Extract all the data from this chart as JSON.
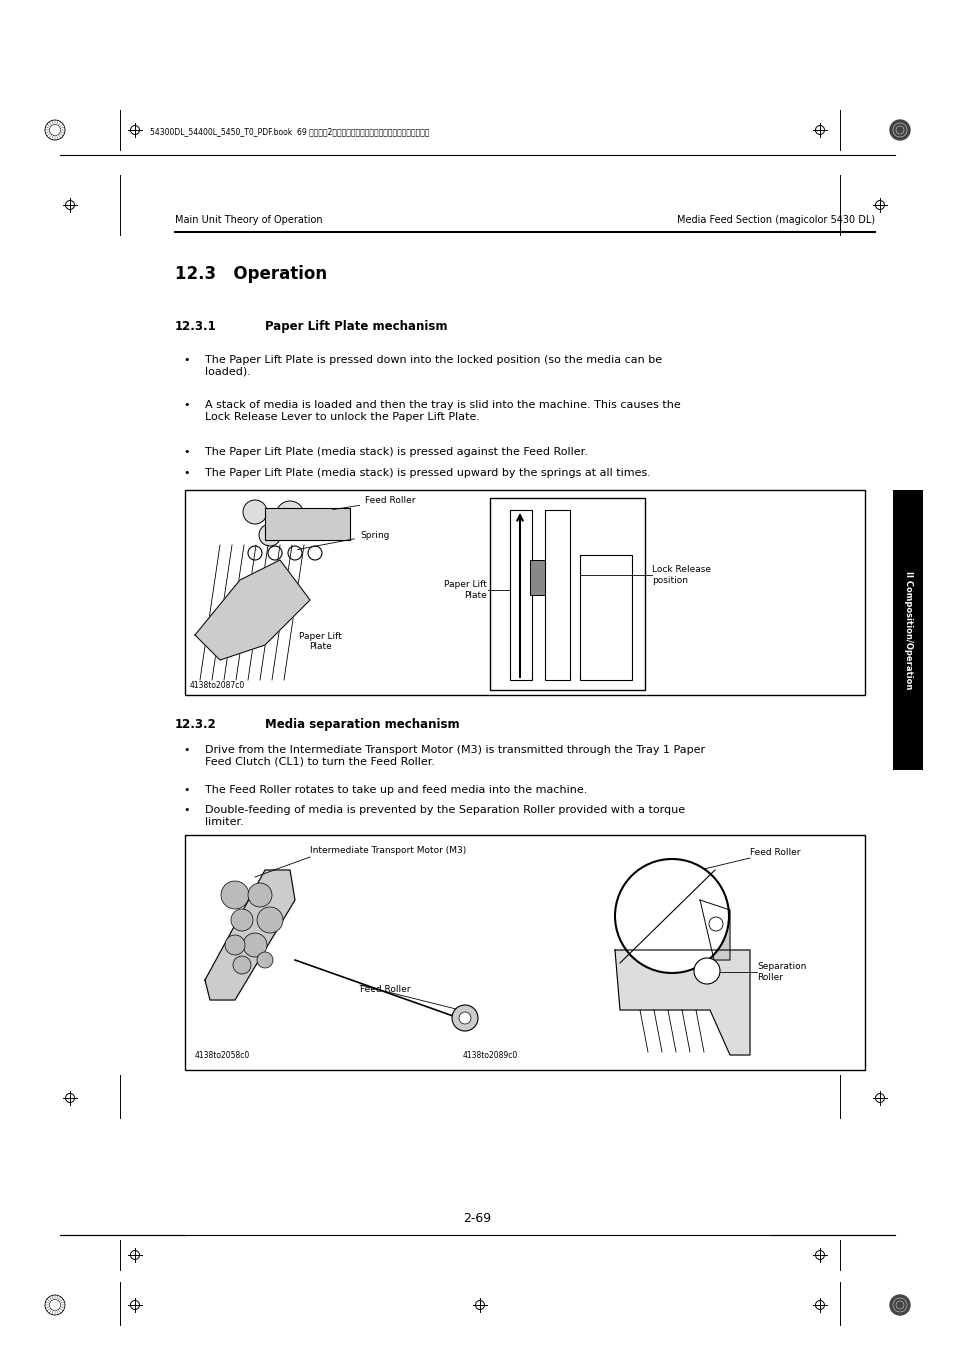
{
  "bg_color": "#ffffff",
  "page_width": 9.54,
  "page_height": 13.51,
  "header_left": "Main Unit Theory of Operation",
  "header_right": "Media Feed Section (magicolor 5430 DL)",
  "section_title": "12.3   Operation",
  "subsection1_num": "12.3.1",
  "subsection1_title": "Paper Lift Plate mechanism",
  "subsection2_num": "12.3.2",
  "subsection2_title": "Media separation mechanism",
  "bullet1_1": "The Paper Lift Plate is pressed down into the locked position (so the media can be\nloaded).",
  "bullet1_2": "A stack of media is loaded and then the tray is slid into the machine. This causes the\nLock Release Lever to unlock the Paper Lift Plate.",
  "bullet1_3": "The Paper Lift Plate (media stack) is pressed against the Feed Roller.",
  "bullet1_4": "The Paper Lift Plate (media stack) is pressed upward by the springs at all times.",
  "bullet2_1": "Drive from the Intermediate Transport Motor (M3) is transmitted through the Tray 1 Paper\nFeed Clutch (CL1) to turn the Feed Roller.",
  "bullet2_2": "The Feed Roller rotates to take up and feed media into the machine.",
  "bullet2_3": "Double-feeding of media is prevented by the Separation Roller provided with a torque\nlimiter.",
  "footer_text": "2-69",
  "top_banner_text": "54300DL_54400L_5450_T0_PDF.book  69 ページ　2００５年４月１２日　火曜日　午後４時４９分",
  "sidebar_text": "II Composition/Operation",
  "sidebar_color": "#000000",
  "sidebar_text_color": "#ffffff",
  "img1_label_feed_roller": "Feed Roller",
  "img1_label_spring": "Spring",
  "img1_label_plate1": "Paper Lift\nPlate",
  "img1_label_plate2": "Paper Lift\nPlate",
  "img1_label_lock": "Lock Release\nposition",
  "img1_code": "4138to2087c0",
  "img2_label_motor": "Intermediate Transport Motor (M3)",
  "img2_label_feed1": "Feed Roller",
  "img2_label_feed2": "Feed Roller",
  "img2_label_sep": "Separation\nRoller",
  "img2_code1": "4138to2058c0",
  "img2_code2": "4138to2089c0"
}
